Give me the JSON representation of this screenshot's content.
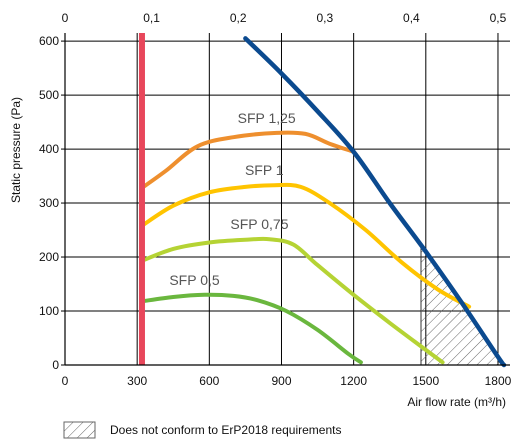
{
  "chart_data": {
    "type": "line",
    "xlabel": "Air flow rate (m³/h)",
    "ylabel": "Static pressure (Pa)",
    "x_unit": "m³/h",
    "xlim": [
      0,
      1850
    ],
    "ylim": [
      0,
      615
    ],
    "x_ticks": [
      0,
      300,
      600,
      900,
      1200,
      1500,
      1800
    ],
    "x_tick_labels": [
      "0",
      "300",
      "600",
      "900",
      "1200",
      "1500",
      "1800"
    ],
    "y_ticks": [
      0,
      100,
      200,
      300,
      400,
      500,
      600
    ],
    "y_tick_labels": [
      "0",
      "100",
      "200",
      "300",
      "400",
      "500",
      "600"
    ],
    "top_axis": {
      "unit": "m³/s",
      "ticks": [
        0,
        0.1,
        0.2,
        0.3,
        0.4,
        0.5
      ],
      "tick_labels": [
        "0",
        "0,1",
        "0,2",
        "0,3",
        "0,4",
        "0,5"
      ]
    },
    "grid": true,
    "min_flow_line": {
      "x": 320,
      "color": "#e8475b"
    },
    "fan_curve": {
      "color": "#0b4a8f",
      "points": [
        [
          750,
          605
        ],
        [
          900,
          540
        ],
        [
          1050,
          470
        ],
        [
          1200,
          395
        ],
        [
          1350,
          300
        ],
        [
          1500,
          210
        ],
        [
          1650,
          115
        ],
        [
          1800,
          15
        ],
        [
          1825,
          0
        ]
      ]
    },
    "series": [
      {
        "name": "SFP 1,25",
        "color": "#ee8f2e",
        "points": [
          [
            320,
            328
          ],
          [
            420,
            360
          ],
          [
            550,
            405
          ],
          [
            700,
            422
          ],
          [
            880,
            430
          ],
          [
            1000,
            428
          ],
          [
            1100,
            410
          ],
          [
            1200,
            395
          ]
        ]
      },
      {
        "name": "SFP 1",
        "color": "#ffc400",
        "points": [
          [
            320,
            258
          ],
          [
            450,
            295
          ],
          [
            600,
            320
          ],
          [
            750,
            330
          ],
          [
            870,
            333
          ],
          [
            980,
            330
          ],
          [
            1100,
            300
          ],
          [
            1250,
            250
          ],
          [
            1400,
            190
          ],
          [
            1550,
            140
          ],
          [
            1680,
            108
          ]
        ]
      },
      {
        "name": "SFP 0,75",
        "color": "#b5d334",
        "points": [
          [
            320,
            193
          ],
          [
            450,
            215
          ],
          [
            600,
            227
          ],
          [
            750,
            232
          ],
          [
            850,
            233
          ],
          [
            950,
            223
          ],
          [
            1050,
            185
          ],
          [
            1200,
            130
          ],
          [
            1350,
            78
          ],
          [
            1500,
            28
          ],
          [
            1570,
            5
          ]
        ]
      },
      {
        "name": "SFP 0,5",
        "color": "#6ab73e",
        "points": [
          [
            320,
            118
          ],
          [
            450,
            126
          ],
          [
            580,
            130
          ],
          [
            700,
            128
          ],
          [
            800,
            120
          ],
          [
            920,
            100
          ],
          [
            1050,
            65
          ],
          [
            1180,
            20
          ],
          [
            1230,
            5
          ]
        ]
      }
    ],
    "non_conform_region": {
      "x_from": 1480,
      "label": "Does not conform to ErP2018 requirements"
    }
  }
}
